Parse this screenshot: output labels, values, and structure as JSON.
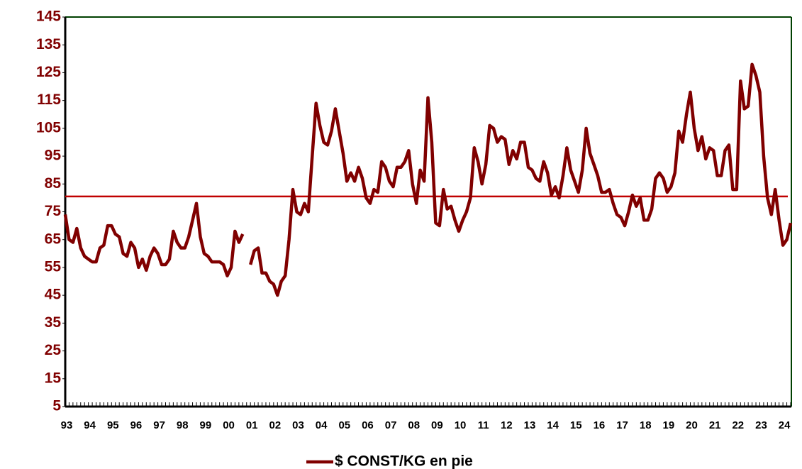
{
  "chart_data": {
    "type": "line",
    "categories": [
      "93",
      null,
      null,
      null,
      null,
      null,
      "94",
      null,
      null,
      null,
      null,
      null,
      "95",
      null,
      null,
      null,
      null,
      null,
      "96",
      null,
      null,
      null,
      null,
      null,
      "97",
      null,
      null,
      null,
      null,
      null,
      "98",
      null,
      null,
      null,
      null,
      null,
      "99",
      null,
      null,
      null,
      null,
      null,
      "00",
      null,
      null,
      null,
      null,
      null,
      "01",
      null,
      null,
      null,
      null,
      null,
      "02",
      null,
      null,
      null,
      null,
      null,
      "03",
      null,
      null,
      null,
      null,
      null,
      "04",
      null,
      null,
      null,
      null,
      null,
      "05",
      null,
      null,
      null,
      null,
      null,
      "06",
      null,
      null,
      null,
      null,
      null,
      "07",
      null,
      null,
      null,
      null,
      null,
      "08",
      null,
      null,
      null,
      null,
      null,
      "09",
      null,
      null,
      null,
      null,
      null,
      "10",
      null,
      null,
      null,
      null,
      null,
      "11",
      null,
      null,
      null,
      null,
      null,
      "12",
      null,
      null,
      null,
      null,
      null,
      "13",
      null,
      null,
      null,
      null,
      null,
      "14",
      null,
      null,
      null,
      null,
      null,
      "15",
      null,
      null,
      null,
      null,
      null,
      "16",
      null,
      null,
      null,
      null,
      null,
      "17",
      null,
      null,
      null,
      null,
      null,
      "18",
      null,
      null,
      null,
      null,
      null,
      "19",
      null,
      null,
      null,
      null,
      null,
      "20",
      null,
      null,
      null,
      null,
      null,
      "21",
      null,
      null,
      null,
      null,
      null,
      "22",
      null,
      null,
      null,
      null,
      null,
      "23",
      null,
      null,
      null,
      null,
      null,
      "24",
      null,
      null
    ],
    "series": [
      {
        "name": "$ CONST/KG en pie",
        "color": "#800000",
        "values": [
          74,
          65,
          64,
          69,
          62,
          59,
          58,
          57,
          57,
          62,
          63,
          70,
          70,
          67,
          66,
          60,
          59,
          64,
          62,
          55,
          58,
          54,
          59,
          62,
          60,
          56,
          56,
          58,
          68,
          64,
          62,
          62,
          66,
          72,
          78,
          66,
          60,
          59,
          57,
          57,
          57,
          56,
          52,
          55,
          68,
          64,
          67,
          null,
          56,
          61,
          62,
          53,
          53,
          50,
          49,
          45,
          50,
          52,
          65,
          83,
          75,
          74,
          78,
          75,
          95,
          114,
          106,
          100,
          99,
          104,
          112,
          104,
          96,
          86,
          89,
          86,
          91,
          87,
          80,
          78,
          83,
          82,
          93,
          91,
          86,
          84,
          91,
          91,
          93,
          97,
          85,
          78,
          90,
          86,
          116,
          100,
          71,
          70,
          83,
          76,
          77,
          72,
          68,
          72,
          75,
          80,
          98,
          93,
          85,
          92,
          106,
          105,
          100,
          102,
          101,
          92,
          97,
          94,
          100,
          100,
          91,
          90,
          87,
          86,
          93,
          89,
          81,
          84,
          80,
          88,
          98,
          90,
          86,
          82,
          90,
          105,
          96,
          92,
          88,
          82,
          82,
          83,
          78,
          74,
          73,
          70,
          75,
          81,
          77,
          80,
          72,
          72,
          76,
          87,
          89,
          87,
          82,
          84,
          89,
          104,
          100,
          110,
          118,
          105,
          97,
          102,
          94,
          98,
          97,
          88,
          88,
          97,
          99,
          83,
          83,
          122,
          112,
          113,
          128,
          124,
          118,
          95,
          80,
          74,
          83,
          72,
          63,
          65,
          71
        ]
      }
    ],
    "reference_line": {
      "value": 80.5,
      "color": "#c00000"
    },
    "ylim": [
      5,
      145
    ],
    "yticks": [
      5,
      15,
      25,
      35,
      45,
      55,
      65,
      75,
      85,
      95,
      105,
      115,
      125,
      135,
      145
    ],
    "legend": "bottom"
  }
}
